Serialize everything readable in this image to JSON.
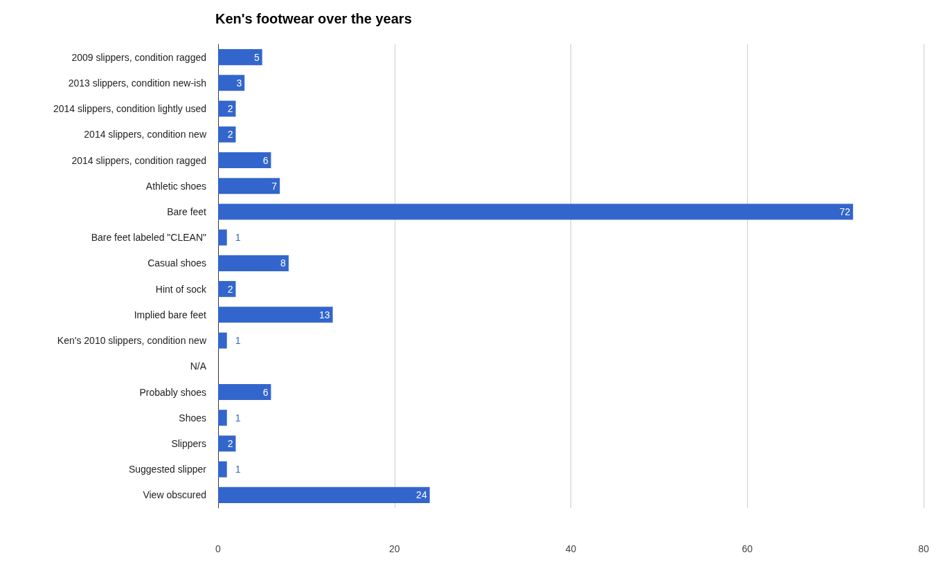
{
  "chart_data": {
    "type": "bar",
    "orientation": "horizontal",
    "title": "Ken's footwear over the years",
    "categories": [
      "2009 slippers, condition ragged",
      "2013 slippers, condition new-ish",
      "2014 slippers, condition lightly used",
      "2014 slippers, condition new",
      "2014 slippers, condition ragged",
      "Athletic shoes",
      "Bare feet",
      "Bare feet labeled \"CLEAN\"",
      "Casual shoes",
      "Hint of sock",
      "Implied bare feet",
      "Ken's 2010 slippers, condition new",
      "N/A",
      "Probably shoes",
      "Shoes",
      "Slippers",
      "Suggested slipper",
      "View obscured"
    ],
    "values": [
      5,
      3,
      2,
      2,
      6,
      7,
      72,
      1,
      8,
      2,
      13,
      1,
      null,
      6,
      1,
      2,
      1,
      24
    ],
    "color": "#3366cc",
    "xlim": [
      0,
      80
    ],
    "xticks": [
      0,
      20,
      40,
      60,
      80
    ],
    "grid": "x",
    "data_labels": true
  }
}
